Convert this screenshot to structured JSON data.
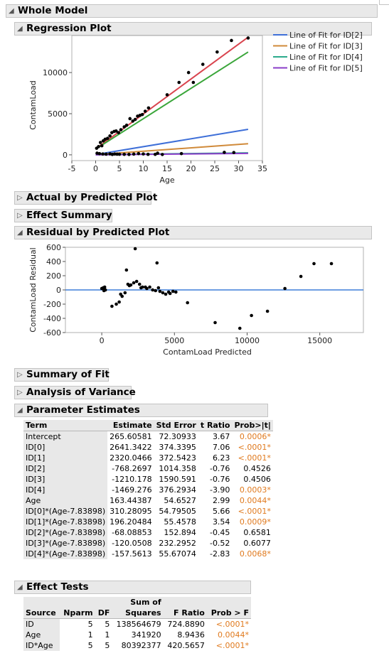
{
  "report": {
    "title": "Whole Model",
    "sections": {
      "regression_plot": "Regression Plot",
      "actual_by_predicted": "Actual by Predicted Plot",
      "effect_summary": "Effect Summary",
      "residual_plot": "Residual by Predicted Plot",
      "summary_of_fit": "Summary of Fit",
      "analysis_of_variance": "Analysis of Variance",
      "parameter_estimates": "Parameter Estimates",
      "effect_tests": "Effect Tests"
    }
  },
  "colors": {
    "id0": "#d9444e",
    "id1": "#3aa63a",
    "id2": "#3e6fd8",
    "id3": "#d08a3a",
    "id4": "#2bab8c",
    "id5": "#8a3dc8",
    "significant": "#e07a1e",
    "zero_line": "#3e7fd8"
  },
  "chart_data": [
    {
      "type": "scatter",
      "xlabel": "Age",
      "ylabel": "ContamLoad",
      "xlim": [
        -5,
        35
      ],
      "ylim": [
        -700,
        14500
      ],
      "xticks": [
        "-5",
        "0",
        "5",
        "10",
        "15",
        "20",
        "25",
        "30",
        "35"
      ],
      "yticks": [
        "0",
        "5000",
        "10000"
      ],
      "legend": [
        "Line of Fit for ID[2]",
        "Line of Fit for ID[3]",
        "Line of Fit for ID[4]",
        "Line of Fit for ID[5]"
      ],
      "lines": [
        {
          "id": "id0",
          "x": [
            0,
            32
          ],
          "y": [
            720,
            14300
          ]
        },
        {
          "id": "id1",
          "x": [
            0,
            32
          ],
          "y": [
            700,
            12500
          ]
        },
        {
          "id": "id2",
          "x": [
            0,
            32
          ],
          "y": [
            30,
            3100
          ]
        },
        {
          "id": "id3",
          "x": [
            0,
            32
          ],
          "y": [
            20,
            1350
          ]
        },
        {
          "id": "id4",
          "x": [
            0,
            32
          ],
          "y": [
            10,
            240
          ]
        },
        {
          "id": "id5",
          "x": [
            0,
            32
          ],
          "y": [
            0,
            170
          ]
        }
      ],
      "points": {
        "x": [
          0.2,
          0.6,
          1.0,
          1.3,
          1.6,
          2.0,
          2.5,
          3.0,
          3.4,
          3.9,
          4.3,
          4.8,
          5.3,
          6.0,
          6.5,
          7.2,
          7.8,
          8.3,
          8.8,
          9.3,
          9.8,
          10.4,
          11.1,
          0.3,
          0.8,
          1.5,
          2.2,
          3.0,
          4.0,
          5.0,
          6.0,
          7.0,
          8.0,
          9.0,
          10.0,
          11.0,
          13.0,
          15.0,
          17.5,
          18.0,
          19.5,
          20.5,
          22.5,
          25.5,
          28.5,
          32.0,
          3.5,
          4.5,
          12.5,
          14.0,
          27.0,
          29.0
        ],
        "y": [
          800,
          1000,
          1500,
          1100,
          1700,
          1900,
          2000,
          2300,
          2700,
          2850,
          2900,
          2700,
          3050,
          3400,
          3600,
          4400,
          4100,
          4300,
          4700,
          4800,
          4900,
          5300,
          5700,
          200,
          150,
          100,
          80,
          120,
          100,
          70,
          60,
          50,
          90,
          150,
          110,
          60,
          200,
          7300,
          8800,
          150,
          10000,
          8800,
          11000,
          12500,
          13900,
          14200,
          50,
          80,
          60,
          40,
          300,
          280
        ]
      }
    },
    {
      "type": "scatter",
      "xlabel": "ContamLoad Predicted",
      "ylabel": "ContamLoad Residual",
      "xlim": [
        -2500,
        18000
      ],
      "ylim": [
        -600,
        600
      ],
      "xticks": [
        "0",
        "5000",
        "10000",
        "15000"
      ],
      "yticks": [
        "600",
        "400",
        "200",
        "0",
        "-200",
        "-400",
        "-600"
      ],
      "points": {
        "x": [
          0,
          100,
          150,
          200,
          250,
          700,
          1000,
          1200,
          1300,
          1400,
          1600,
          1700,
          1800,
          1900,
          2000,
          2200,
          2300,
          2400,
          2600,
          2700,
          2800,
          3000,
          3100,
          3300,
          3500,
          3700,
          3800,
          3900,
          4000,
          4200,
          4400,
          4600,
          4700,
          4900,
          5100,
          5900,
          7800,
          9500,
          10300,
          11400,
          12600,
          13700,
          14600,
          15800
        ],
        "y": [
          20,
          30,
          -10,
          40,
          0,
          -230,
          -200,
          -170,
          -60,
          -90,
          -40,
          280,
          80,
          60,
          70,
          100,
          580,
          120,
          80,
          30,
          40,
          40,
          20,
          40,
          0,
          -10,
          380,
          30,
          -20,
          -40,
          -60,
          -30,
          -50,
          -20,
          -30,
          -180,
          -460,
          -540,
          -360,
          -300,
          20,
          190,
          370,
          370
        ]
      }
    }
  ],
  "parameter_estimates": {
    "headers": [
      "Term",
      "Estimate",
      "Std Error",
      "t Ratio",
      "Prob>|t|"
    ],
    "rows": [
      {
        "term": "Intercept",
        "estimate": "265.60581",
        "std_error": "72.30933",
        "t_ratio": "3.67",
        "prob": "0.0006*",
        "sig": true
      },
      {
        "term": "ID[0]",
        "estimate": "2641.3422",
        "std_error": "374.3395",
        "t_ratio": "7.06",
        "prob": "<.0001*",
        "sig": true
      },
      {
        "term": "ID[1]",
        "estimate": "2320.0466",
        "std_error": "372.5423",
        "t_ratio": "6.23",
        "prob": "<.0001*",
        "sig": true
      },
      {
        "term": "ID[2]",
        "estimate": "-768.2697",
        "std_error": "1014.358",
        "t_ratio": "-0.76",
        "prob": "0.4526",
        "sig": false
      },
      {
        "term": "ID[3]",
        "estimate": "-1210.178",
        "std_error": "1590.591",
        "t_ratio": "-0.76",
        "prob": "0.4506",
        "sig": false
      },
      {
        "term": "ID[4]",
        "estimate": "-1469.276",
        "std_error": "376.2934",
        "t_ratio": "-3.90",
        "prob": "0.0003*",
        "sig": true
      },
      {
        "term": "Age",
        "estimate": "163.44387",
        "std_error": "54.6527",
        "t_ratio": "2.99",
        "prob": "0.0044*",
        "sig": true
      },
      {
        "term": "ID[0]*(Age-7.83898)",
        "estimate": "310.28095",
        "std_error": "54.79505",
        "t_ratio": "5.66",
        "prob": "<.0001*",
        "sig": true
      },
      {
        "term": "ID[1]*(Age-7.83898)",
        "estimate": "196.20484",
        "std_error": "55.4578",
        "t_ratio": "3.54",
        "prob": "0.0009*",
        "sig": true
      },
      {
        "term": "ID[2]*(Age-7.83898)",
        "estimate": "-68.08853",
        "std_error": "152.894",
        "t_ratio": "-0.45",
        "prob": "0.6581",
        "sig": false
      },
      {
        "term": "ID[3]*(Age-7.83898)",
        "estimate": "-120.0508",
        "std_error": "232.2952",
        "t_ratio": "-0.52",
        "prob": "0.6077",
        "sig": false
      },
      {
        "term": "ID[4]*(Age-7.83898)",
        "estimate": "-157.5613",
        "std_error": "55.67074",
        "t_ratio": "-2.83",
        "prob": "0.0068*",
        "sig": true
      }
    ]
  },
  "effect_tests": {
    "headers": {
      "source": "Source",
      "nparm": "Nparm",
      "df": "DF",
      "ss_top": "Sum of",
      "ss_bottom": "Squares",
      "f_ratio": "F Ratio",
      "prob": "Prob > F"
    },
    "rows": [
      {
        "source": "ID",
        "nparm": "5",
        "df": "5",
        "ss": "138564679",
        "f_ratio": "724.8890",
        "prob": "<.0001*"
      },
      {
        "source": "Age",
        "nparm": "1",
        "df": "1",
        "ss": "341920",
        "f_ratio": "8.9436",
        "prob": "0.0044*"
      },
      {
        "source": "ID*Age",
        "nparm": "5",
        "df": "5",
        "ss": "80392377",
        "f_ratio": "420.5657",
        "prob": "<.0001*"
      }
    ]
  }
}
